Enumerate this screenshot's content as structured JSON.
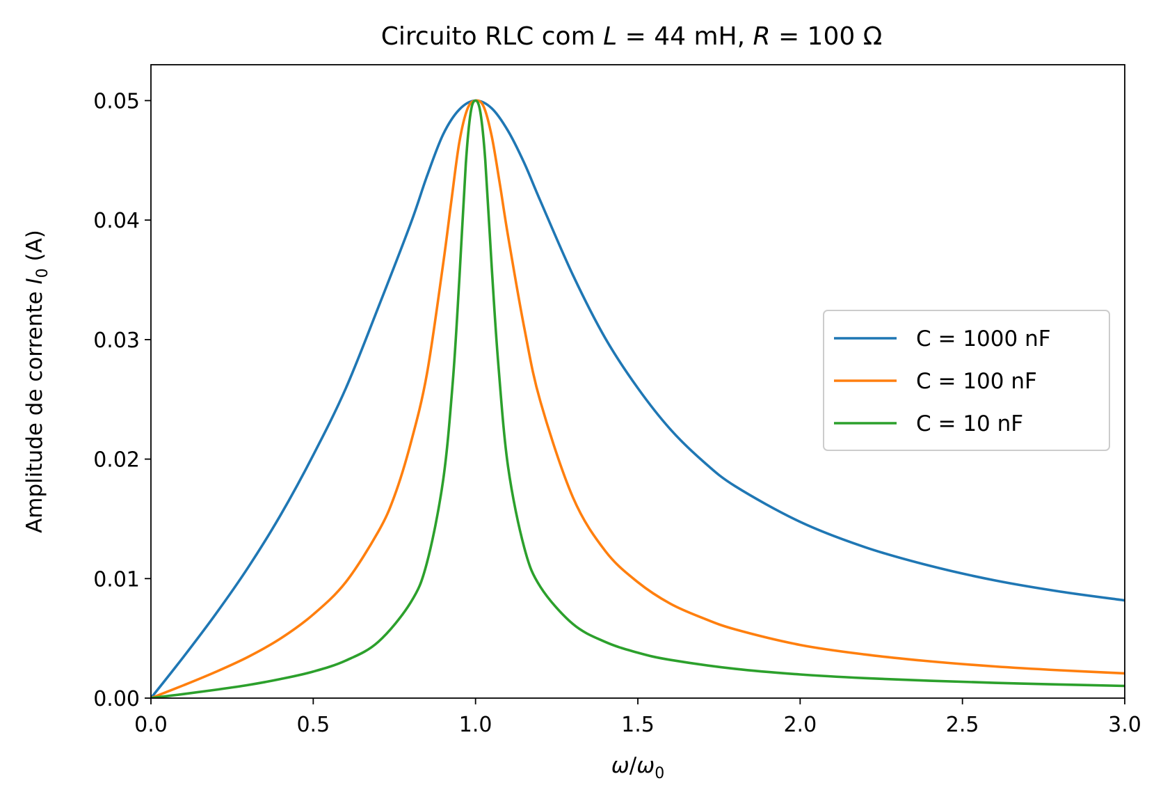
{
  "chart_data": {
    "type": "line",
    "title": {
      "prefix": "Circuito RLC com ",
      "L_sym": "L",
      "L_val": " = 44 mH, ",
      "R_sym": "R",
      "R_val": " = 100 Ω"
    },
    "xlabel": {
      "omega": "ω",
      "slash": "/",
      "omega0": "ω",
      "sub": "0"
    },
    "ylabel": {
      "text": "Amplitude de corrente ",
      "I": "I",
      "sub": "0",
      "unit": " (A)"
    },
    "xlim": [
      0,
      3
    ],
    "ylim": [
      0,
      0.053
    ],
    "xticks": [
      {
        "value": 0,
        "label": "0.0"
      },
      {
        "value": 0.5,
        "label": "0.5"
      },
      {
        "value": 1,
        "label": "1.0"
      },
      {
        "value": 1.5,
        "label": "1.5"
      },
      {
        "value": 2,
        "label": "2.0"
      },
      {
        "value": 2.5,
        "label": "2.5"
      },
      {
        "value": 3,
        "label": "3.0"
      }
    ],
    "yticks": [
      {
        "value": 0,
        "label": "0.00"
      },
      {
        "value": 0.01,
        "label": "0.01"
      },
      {
        "value": 0.02,
        "label": "0.02"
      },
      {
        "value": 0.03,
        "label": "0.03"
      },
      {
        "value": 0.04,
        "label": "0.04"
      },
      {
        "value": 0.05,
        "label": "0.05"
      }
    ],
    "grid": false,
    "legend_position": "center-right",
    "series": [
      {
        "name": "C = 1000 nF",
        "color": "#1f77b4",
        "x": [
          0,
          0.1,
          0.2,
          0.3,
          0.4,
          0.5,
          0.6,
          0.7,
          0.8,
          0.85,
          0.9,
          0.95,
          1.0,
          1.05,
          1.1,
          1.15,
          1.2,
          1.3,
          1.4,
          1.5,
          1.6,
          1.7,
          1.8,
          2.0,
          2.2,
          2.4,
          2.6,
          2.8,
          3.0
        ],
        "y": [
          0,
          0.00344,
          0.00705,
          0.01096,
          0.01535,
          0.02034,
          0.0259,
          0.03267,
          0.0397,
          0.04365,
          0.04716,
          0.04925,
          0.05,
          0.04935,
          0.04747,
          0.04478,
          0.04159,
          0.0354,
          0.0301,
          0.02594,
          0.0225,
          0.01984,
          0.01773,
          0.01475,
          0.01263,
          0.01107,
          0.00985,
          0.00892,
          0.00818
        ]
      },
      {
        "name": "C = 100 nF",
        "color": "#ff7f0e",
        "x": [
          0,
          0.1,
          0.2,
          0.3,
          0.4,
          0.5,
          0.6,
          0.7,
          0.75,
          0.8,
          0.85,
          0.9,
          0.925,
          0.95,
          0.975,
          1.0,
          1.025,
          1.05,
          1.075,
          1.1,
          1.15,
          1.2,
          1.3,
          1.4,
          1.5,
          1.6,
          1.7,
          1.8,
          2.0,
          2.2,
          2.4,
          2.6,
          2.8,
          3.0
        ],
        "y": [
          0,
          0.00107,
          0.0022,
          0.00346,
          0.005,
          0.007,
          0.0097,
          0.01391,
          0.0169,
          0.0213,
          0.0271,
          0.0363,
          0.0415,
          0.0465,
          0.0493,
          0.05,
          0.0495,
          0.047,
          0.043,
          0.0387,
          0.031,
          0.0248,
          0.0168,
          0.0123,
          0.0097,
          0.0079,
          0.0067,
          0.00575,
          0.00445,
          0.00365,
          0.00308,
          0.00265,
          0.00233,
          0.00207
        ]
      },
      {
        "name": "C = 10 nF",
        "color": "#2ca02c",
        "x": [
          0,
          0.1,
          0.2,
          0.3,
          0.4,
          0.5,
          0.6,
          0.7,
          0.8,
          0.85,
          0.9,
          0.93,
          0.95,
          0.97,
          0.985,
          1.0,
          1.015,
          1.03,
          1.05,
          1.07,
          1.1,
          1.15,
          1.2,
          1.3,
          1.4,
          1.5,
          1.6,
          1.8,
          2.0,
          2.2,
          2.4,
          2.6,
          2.8,
          3.0
        ],
        "y": [
          0,
          0.00034,
          0.0007,
          0.0011,
          0.0016,
          0.00222,
          0.00314,
          0.0047,
          0.008,
          0.0113,
          0.0182,
          0.0265,
          0.035,
          0.0447,
          0.049,
          0.05,
          0.049,
          0.045,
          0.036,
          0.028,
          0.0194,
          0.0126,
          0.0093,
          0.0062,
          0.0047,
          0.0038,
          0.0032,
          0.00245,
          0.00198,
          0.00167,
          0.00145,
          0.00128,
          0.00114,
          0.00102
        ]
      }
    ]
  }
}
